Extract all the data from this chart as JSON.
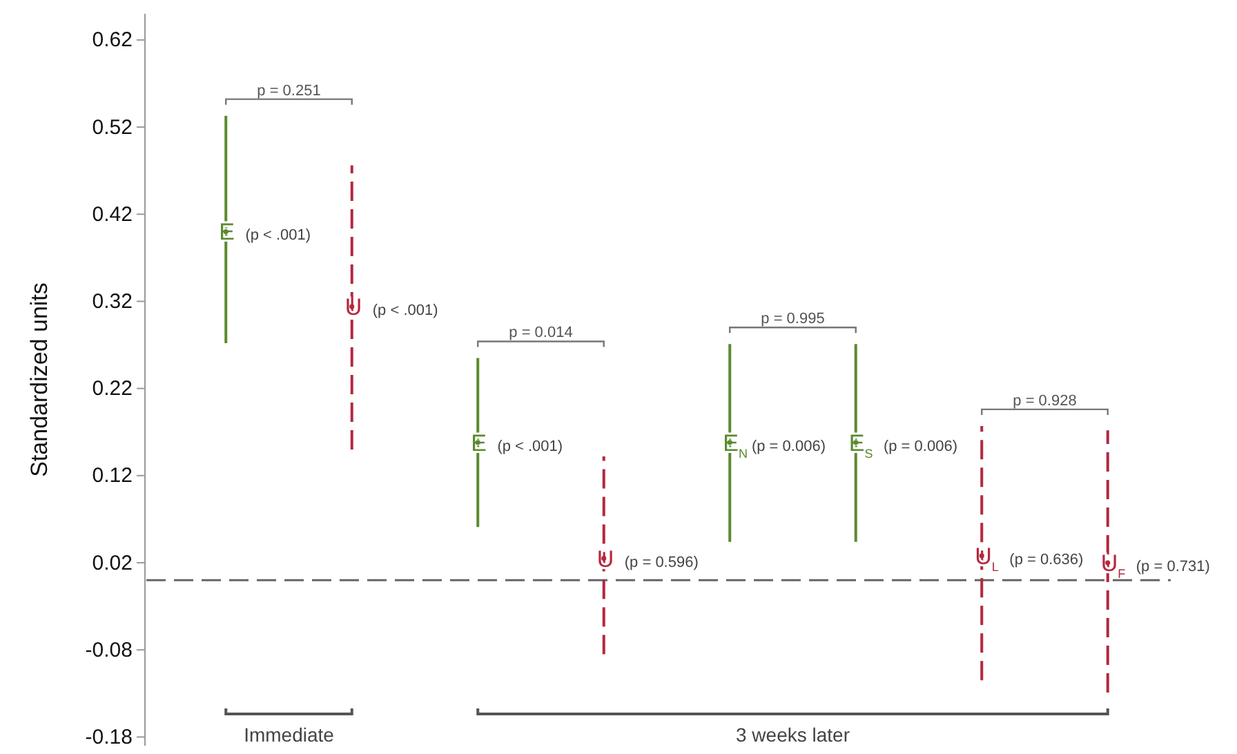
{
  "chart_data": {
    "type": "scatter",
    "ylabel": "Standardized units",
    "categories": [
      null,
      null,
      null,
      null,
      null,
      null,
      null,
      null
    ],
    "series": [
      {
        "color": "#5b8a2e",
        "line_style": "solid",
        "marker": "circle",
        "values": [
          0.4,
          null,
          0.158,
          null,
          0.158,
          0.158,
          null,
          null
        ],
        "errors": [
          [
            0.272,
            0.533
          ],
          null,
          [
            0.061,
            0.255
          ],
          null,
          [
            0.044,
            0.271
          ],
          [
            0.044,
            0.271
          ],
          null,
          null
        ]
      },
      {
        "color": "#b5273f",
        "line_style": "dashed",
        "marker": "circle",
        "values": [
          null,
          0.314,
          null,
          0.025,
          null,
          null,
          0.028,
          0.02
        ],
        "errors": [
          null,
          [
            0.15,
            0.476
          ],
          null,
          [
            -0.085,
            0.142
          ],
          null,
          null,
          [
            -0.115,
            0.177
          ],
          [
            -0.129,
            0.172
          ]
        ]
      }
    ],
    "ylim": [
      -0.19,
      0.65
    ],
    "yticks": [
      -0.18,
      -0.08,
      0.02,
      0.12,
      0.22,
      0.32,
      0.42,
      0.52,
      0.62
    ],
    "grid": false,
    "tick_labels": "y",
    "ref_lines": [
      {
        "axis": "y",
        "value": 0,
        "color": "#666666",
        "line_style": "dashed"
      }
    ],
    "annotations": [
      "p = 0.251",
      "p = 0.014",
      "p = 0.995",
      "p = 0.928",
      "Immediate",
      "3 weeks later",
      "E (p < .001)",
      "U (p < .001)",
      "E (p < .001)",
      "U (p = 0.596)",
      "E$_{N}$(p = 0.006)",
      "E$_{S}$ (p = 0.006)",
      "U$_{L}$ (p = 0.636)",
      "U$_{F}$ (p = 0.731)"
    ]
  }
}
